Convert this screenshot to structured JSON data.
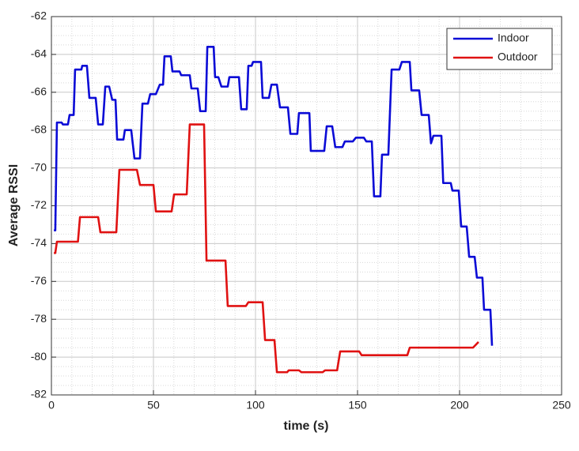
{
  "chart_data": {
    "type": "line",
    "xlabel": "time (s)",
    "ylabel": "Average RSSI",
    "xlim": [
      0,
      250
    ],
    "xticks": [
      0,
      50,
      100,
      150,
      200,
      250
    ],
    "ylim": [
      -82,
      -62
    ],
    "yticks": [
      -82,
      -80,
      -78,
      -76,
      -74,
      -72,
      -70,
      -68,
      -66,
      -64,
      -62
    ],
    "grid": true,
    "minor_grid": true,
    "legend": "upper-right",
    "series": [
      {
        "name": "Indoor",
        "color": "#0b0bd6",
        "x": [
          1.2,
          1.9,
          2.7,
          5.0,
          5.6,
          8.1,
          8.9,
          10.9,
          11.6,
          14.7,
          15.1,
          17.4,
          18.6,
          21.7,
          22.9,
          25.2,
          26.4,
          28.3,
          29.8,
          31.4,
          32.2,
          35.3,
          36.0,
          39.1,
          40.7,
          43.4,
          44.6,
          47.3,
          48.4,
          51.2,
          53.1,
          54.7,
          55.4,
          58.5,
          59.3,
          62.8,
          63.6,
          67.8,
          68.6,
          71.7,
          72.9,
          75.6,
          76.4,
          79.5,
          80.2,
          81.8,
          83.3,
          86.4,
          87.2,
          91.9,
          93.0,
          95.7,
          96.5,
          98.1,
          98.8,
          102.7,
          103.5,
          106.6,
          107.8,
          110.5,
          112.0,
          115.9,
          117.1,
          120.5,
          121.3,
          126.4,
          127.1,
          133.7,
          134.9,
          137.6,
          139.1,
          142.6,
          143.8,
          147.7,
          149.2,
          153.1,
          154.3,
          157.0,
          158.1,
          161.2,
          162.0,
          165.1,
          166.7,
          170.5,
          171.7,
          175.6,
          176.4,
          180.2,
          181.4,
          184.9,
          186.0,
          187.2,
          191.1,
          192.0,
          195.7,
          196.5,
          199.6,
          200.8,
          203.5,
          204.7,
          207.4,
          208.5,
          211.2,
          212.0,
          215.1,
          215.9
        ],
        "values": [
          -73.3,
          -73.3,
          -67.6,
          -67.6,
          -67.7,
          -67.7,
          -67.2,
          -67.2,
          -64.8,
          -64.8,
          -64.6,
          -64.6,
          -66.3,
          -66.3,
          -67.7,
          -67.7,
          -65.7,
          -65.7,
          -66.4,
          -66.4,
          -68.5,
          -68.5,
          -68.0,
          -68.0,
          -69.5,
          -69.5,
          -66.6,
          -66.6,
          -66.1,
          -66.1,
          -65.6,
          -65.6,
          -64.1,
          -64.1,
          -64.9,
          -64.9,
          -65.1,
          -65.1,
          -65.8,
          -65.8,
          -67.0,
          -67.0,
          -63.6,
          -63.6,
          -65.2,
          -65.2,
          -65.7,
          -65.7,
          -65.2,
          -65.2,
          -66.9,
          -66.9,
          -64.6,
          -64.6,
          -64.4,
          -64.4,
          -66.3,
          -66.3,
          -65.6,
          -65.6,
          -66.8,
          -66.8,
          -68.2,
          -68.2,
          -67.1,
          -67.1,
          -69.1,
          -69.1,
          -67.8,
          -67.8,
          -68.9,
          -68.9,
          -68.6,
          -68.6,
          -68.4,
          -68.4,
          -68.6,
          -68.6,
          -71.5,
          -71.5,
          -69.3,
          -69.3,
          -64.8,
          -64.8,
          -64.4,
          -64.4,
          -65.9,
          -65.9,
          -67.2,
          -67.2,
          -68.7,
          -68.3,
          -68.3,
          -70.8,
          -70.8,
          -71.2,
          -71.2,
          -73.1,
          -73.1,
          -74.7,
          -74.7,
          -75.8,
          -75.8,
          -77.5,
          -77.5,
          -79.4
        ]
      },
      {
        "name": "Outdoor",
        "color": "#e01212",
        "x": [
          1.2,
          1.9,
          2.7,
          13.0,
          14.0,
          22.9,
          24.0,
          31.8,
          33.3,
          41.9,
          43.4,
          50.0,
          51.2,
          58.9,
          60.1,
          66.3,
          67.8,
          74.8,
          76.0,
          85.3,
          86.4,
          95.3,
          96.5,
          103.5,
          104.7,
          109.3,
          110.5,
          115.5,
          116.3,
          121.3,
          122.5,
          132.9,
          134.1,
          140.0,
          141.5,
          150.8,
          152.0,
          174.4,
          175.6,
          206.6,
          209.3
        ],
        "values": [
          -74.5,
          -74.5,
          -73.9,
          -73.9,
          -72.6,
          -72.6,
          -73.4,
          -73.4,
          -70.1,
          -70.1,
          -70.9,
          -70.9,
          -72.3,
          -72.3,
          -71.4,
          -71.4,
          -67.7,
          -67.7,
          -74.9,
          -74.9,
          -77.3,
          -77.3,
          -77.1,
          -77.1,
          -79.1,
          -79.1,
          -80.8,
          -80.8,
          -80.7,
          -80.7,
          -80.8,
          -80.8,
          -80.7,
          -80.7,
          -79.7,
          -79.7,
          -79.9,
          -79.9,
          -79.5,
          -79.5,
          -79.2
        ]
      }
    ]
  }
}
